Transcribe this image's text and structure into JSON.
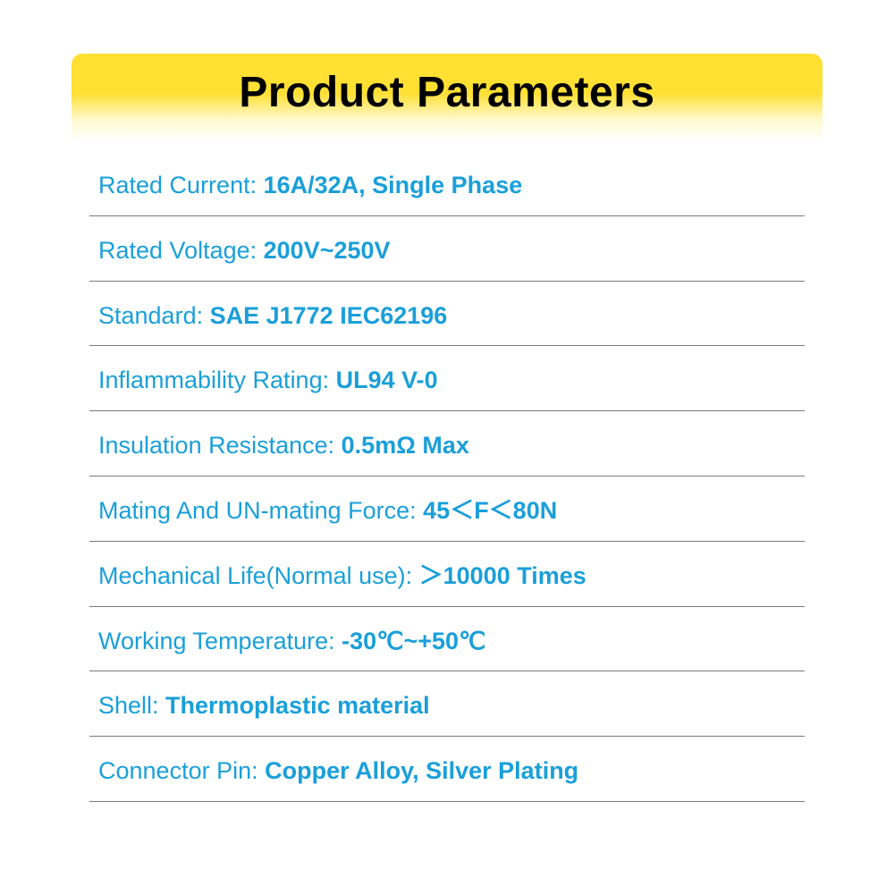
{
  "header": {
    "title": "Product Parameters",
    "title_color": "#000000",
    "title_fontsize": 48,
    "bg_gradient_top": "#ffe033",
    "bg_gradient_bottom": "#ffffff"
  },
  "params": {
    "text_color": "#1a9fd9",
    "border_color": "#7a7a7a",
    "fontsize": 27,
    "rows": [
      {
        "label": "Rated Current: ",
        "value": "16A/32A, Single Phase"
      },
      {
        "label": "Rated Voltage: ",
        "value": "200V~250V"
      },
      {
        "label": "Standard: ",
        "value": "SAE J1772   IEC62196"
      },
      {
        "label": "Inflammability Rating: ",
        "value": "UL94 V-0"
      },
      {
        "label": "Insulation Resistance: ",
        "value": "0.5mΩ Max"
      },
      {
        "label": "Mating And UN-mating Force: ",
        "value": "45＜F＜80N"
      },
      {
        "label": "Mechanical Life(Normal use): ",
        "value": "＞10000 Times"
      },
      {
        "label": "Working Temperature: ",
        "value": "-30℃~+50℃"
      },
      {
        "label": "Shell: ",
        "value": "Thermoplastic material"
      },
      {
        "label": "Connector Pin: ",
        "value": "Copper Alloy, Silver Plating"
      }
    ]
  }
}
